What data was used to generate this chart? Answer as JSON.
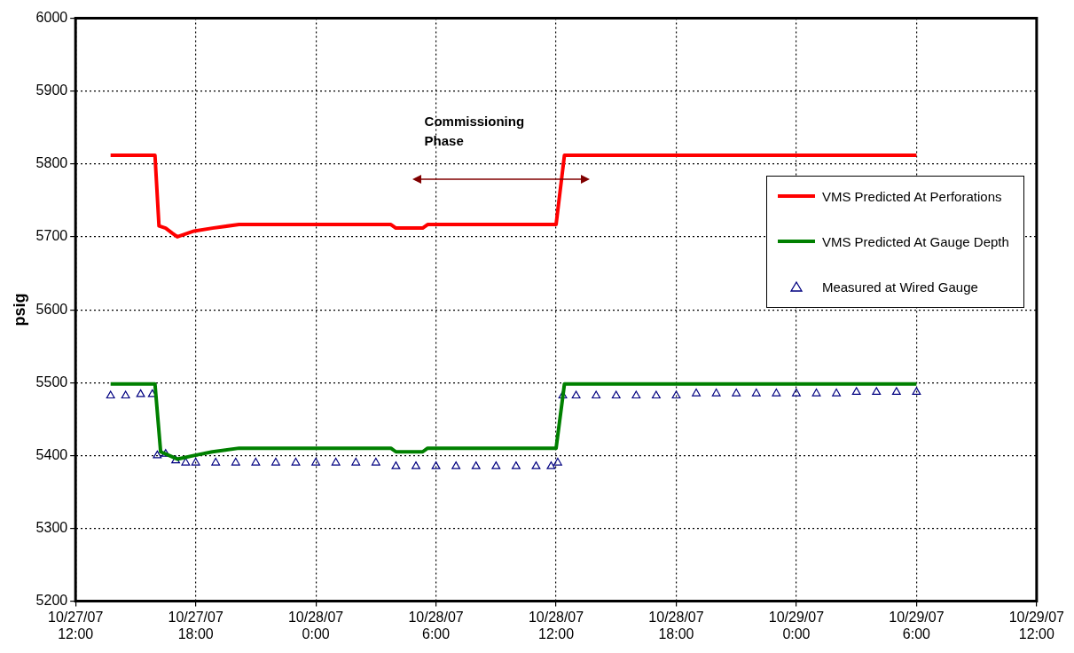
{
  "chart_data": {
    "type": "line",
    "ylabel": "psig",
    "xlim": [
      "--10-27T12:00",
      "--10-29T12:00"
    ],
    "xticks": [
      {
        "value": "--10-27T12:00",
        "label": "10/27/07\n12:00"
      },
      {
        "value": "--10-27T18:00",
        "label": "10/27/07\n18:00"
      },
      {
        "value": "--10-28T00:00",
        "label": "10/28/07\n0:00"
      },
      {
        "value": "--10-28T06:00",
        "label": "10/28/07\n6:00"
      },
      {
        "value": "--10-28T12:00",
        "label": "10/28/07\n12:00"
      },
      {
        "value": "--10-28T18:00",
        "label": "10/28/07\n18:00"
      },
      {
        "value": "--10-29T00:00",
        "label": "10/29/07\n0:00"
      },
      {
        "value": "--10-29T06:00",
        "label": "10/29/07\n6:00"
      },
      {
        "value": "--10-29T12:00",
        "label": "10/29/07\n12:00"
      }
    ],
    "ylim": [
      5200,
      6000
    ],
    "yticks": [
      5200,
      5300,
      5400,
      5500,
      5600,
      5700,
      5800,
      5900,
      6000
    ],
    "grid": true,
    "legend": "right",
    "annotations": [
      "Commissioning Phase"
    ],
    "series": [
      {
        "name": "VMS Predicted At Perforations",
        "marker": "none",
        "color": "#ff0000",
        "x": [
          "--10-27T13:45",
          "--10-27T15:58",
          "--10-27T16:10",
          "--10-27T16:30",
          "--10-27T16:50",
          "--10-27T17:05",
          "--10-27T17:55",
          "--10-27T18:50",
          "--10-27T20:10",
          "--10-28T03:45",
          "--10-28T04:00",
          "--10-28T05:20",
          "--10-28T05:35",
          "--10-28T12:00",
          "--10-28T12:25",
          "--10-29T06:00"
        ],
        "values": [
          5812,
          5812,
          5715,
          5712,
          5705,
          5700,
          5708,
          5712,
          5717,
          5717,
          5712,
          5712,
          5717,
          5717,
          5812,
          5812
        ]
      },
      {
        "name": "VMS Predicted At Gauge Depth",
        "marker": "none",
        "color": "#008000",
        "x": [
          "--10-27T13:45",
          "--10-27T15:58",
          "--10-27T16:15",
          "--10-27T17:05",
          "--10-27T17:55",
          "--10-27T18:50",
          "--10-27T20:10",
          "--10-28T03:45",
          "--10-28T04:00",
          "--10-28T05:20",
          "--10-28T05:35",
          "--10-28T12:00",
          "--10-28T12:25",
          "--10-29T06:00"
        ],
        "values": [
          5498,
          5498,
          5405,
          5395,
          5400,
          5405,
          5410,
          5410,
          5405,
          5405,
          5410,
          5410,
          5498,
          5498
        ]
      },
      {
        "name": "Measured at Wired Gauge",
        "type": "scatter",
        "marker": "triangle",
        "color": "#000080",
        "x": [
          "--10-27T13:45",
          "--10-27T14:30",
          "--10-27T15:15",
          "--10-27T15:50",
          "--10-27T16:05",
          "--10-27T16:30",
          "--10-27T17:00",
          "--10-27T17:30",
          "--10-27T18:00",
          "--10-27T19:00",
          "--10-27T20:00",
          "--10-27T21:00",
          "--10-27T22:00",
          "--10-27T23:00",
          "--10-28T00:00",
          "--10-28T01:00",
          "--10-28T02:00",
          "--10-28T03:00",
          "--10-28T04:00",
          "--10-28T05:00",
          "--10-28T06:00",
          "--10-28T07:00",
          "--10-28T08:00",
          "--10-28T09:00",
          "--10-28T10:00",
          "--10-28T11:00",
          "--10-28T11:45",
          "--10-28T12:05",
          "--10-28T12:20",
          "--10-28T13:00",
          "--10-28T14:00",
          "--10-28T15:00",
          "--10-28T16:00",
          "--10-28T17:00",
          "--10-28T18:00",
          "--10-28T19:00",
          "--10-28T20:00",
          "--10-28T21:00",
          "--10-28T22:00",
          "--10-28T23:00",
          "--10-29T00:00",
          "--10-29T01:00",
          "--10-29T02:00",
          "--10-29T03:00",
          "--10-29T04:00",
          "--10-29T05:00",
          "--10-29T06:00"
        ],
        "values": [
          5482,
          5482,
          5484,
          5484,
          5400,
          5402,
          5393,
          5390,
          5390,
          5390,
          5390,
          5390,
          5390,
          5390,
          5390,
          5390,
          5390,
          5390,
          5385,
          5385,
          5385,
          5385,
          5385,
          5385,
          5385,
          5385,
          5385,
          5390,
          5482,
          5482,
          5482,
          5482,
          5482,
          5482,
          5482,
          5485,
          5485,
          5485,
          5485,
          5485,
          5485,
          5485,
          5485,
          5487,
          5487,
          5487,
          5487
        ]
      }
    ]
  }
}
